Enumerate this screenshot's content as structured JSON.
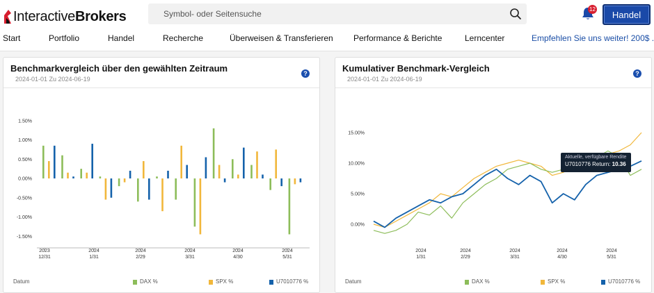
{
  "header": {
    "logo_light": "Interactive",
    "logo_bold": "Brokers",
    "search_placeholder": "Symbol- oder Seitensuche",
    "notifications_count": "12",
    "trade_button": "Handel",
    "brand_color": "#d81e2f",
    "accent_color": "#1a49a8"
  },
  "nav": {
    "items": [
      "Start",
      "Portfolio",
      "Handel",
      "Recherche",
      "Überweisen & Transferieren",
      "Performance & Berichte",
      "Lerncenter"
    ],
    "promo": "Empfehlen Sie uns weiter! 200$ ..."
  },
  "left_card": {
    "title": "Benchmarkvergleich über den gewählten Zeitraum",
    "subtitle": "2024-01-01 Zu 2024-06-19",
    "help": "?"
  },
  "right_card": {
    "title": "Kumulativer Benchmark-Vergleich",
    "subtitle": "2024-01-01 Zu 2024-06-19",
    "help": "?"
  },
  "legend": {
    "date_label": "Datum",
    "series": [
      {
        "name": "DAX %",
        "color": "#8dbd5a"
      },
      {
        "name": "SPX %",
        "color": "#f1b73b"
      },
      {
        "name": "U7010776 %",
        "color": "#1562ab"
      }
    ]
  },
  "tooltip": {
    "line1": "Aktuelle, verfügbare Rendite",
    "line2_prefix": "U7010776 Return:",
    "line2_value": "10.36"
  },
  "chart_data": [
    {
      "type": "bar",
      "title": "Benchmarkvergleich über den gewählten Zeitraum",
      "x_ticks": [
        {
          "top": "2023",
          "bottom": "12/31"
        },
        {
          "top": "2024",
          "bottom": "1/31"
        },
        {
          "top": "2024",
          "bottom": "2/29"
        },
        {
          "top": "2024",
          "bottom": "3/31"
        },
        {
          "top": "2024",
          "bottom": "4/30"
        },
        {
          "top": "2024",
          "bottom": "5/31"
        }
      ],
      "y_ticks": [
        "1.50%",
        "1.00%",
        "0.50%",
        "0.00%",
        "-0.50%",
        "-1.00%",
        "-1.50%"
      ],
      "ylim": [
        -1.6,
        1.6
      ],
      "series": [
        {
          "name": "DAX %",
          "color": "#8dbd5a",
          "values": [
            0.85,
            0.6,
            0.25,
            0.05,
            -0.2,
            -0.6,
            0.05,
            -0.55,
            -1.25,
            1.3,
            0.5,
            0.35,
            -0.3,
            -1.45
          ]
        },
        {
          "name": "SPX %",
          "color": "#f1b73b",
          "values": [
            0.45,
            0.15,
            0.15,
            -0.55,
            -0.1,
            0.45,
            -0.85,
            0.85,
            -1.45,
            0.35,
            0.1,
            0.7,
            0.75,
            -0.15
          ]
        },
        {
          "name": "U7010776 %",
          "color": "#1562ab",
          "values": [
            0.85,
            0.05,
            0.9,
            -0.5,
            0.2,
            -0.55,
            0.2,
            0.35,
            0.55,
            -0.1,
            0.8,
            0.1,
            -0.2,
            -0.1
          ]
        }
      ]
    },
    {
      "type": "line",
      "title": "Kumulativer Benchmark-Vergleich",
      "x_ticks": [
        {
          "top": "2024",
          "bottom": "1/31"
        },
        {
          "top": "2024",
          "bottom": "2/29"
        },
        {
          "top": "2024",
          "bottom": "3/31"
        },
        {
          "top": "2024",
          "bottom": "4/30"
        },
        {
          "top": "2024",
          "bottom": "5/31"
        }
      ],
      "y_ticks": [
        "15.00%",
        "10.00%",
        "5.00%",
        "0.00%"
      ],
      "ylim": [
        -3,
        17
      ],
      "series": [
        {
          "name": "DAX %",
          "color": "#8dbd5a",
          "values": [
            -1.0,
            -1.5,
            -1.0,
            0.0,
            2.0,
            1.5,
            3.0,
            1.0,
            3.5,
            5.0,
            6.5,
            7.5,
            9.0,
            9.5,
            10.0,
            9.0,
            8.5,
            9.0,
            9.5,
            10.5,
            11.0,
            12.0,
            11.0,
            8.0,
            9.0
          ]
        },
        {
          "name": "SPX %",
          "color": "#f1b73b",
          "values": [
            0.0,
            -0.5,
            0.5,
            1.5,
            2.5,
            3.5,
            5.0,
            4.5,
            6.0,
            7.5,
            8.5,
            9.5,
            10.0,
            10.5,
            10.0,
            9.5,
            8.0,
            8.5,
            9.5,
            10.0,
            11.0,
            11.5,
            12.0,
            13.0,
            15.0
          ]
        },
        {
          "name": "U7010776 %",
          "color": "#1562ab",
          "values": [
            0.5,
            -0.5,
            1.0,
            2.0,
            3.0,
            4.0,
            3.5,
            4.5,
            5.0,
            6.5,
            8.0,
            9.0,
            7.5,
            6.5,
            8.0,
            7.0,
            3.5,
            5.0,
            4.0,
            6.5,
            8.0,
            8.5,
            9.0,
            9.5,
            10.36
          ]
        }
      ]
    }
  ]
}
